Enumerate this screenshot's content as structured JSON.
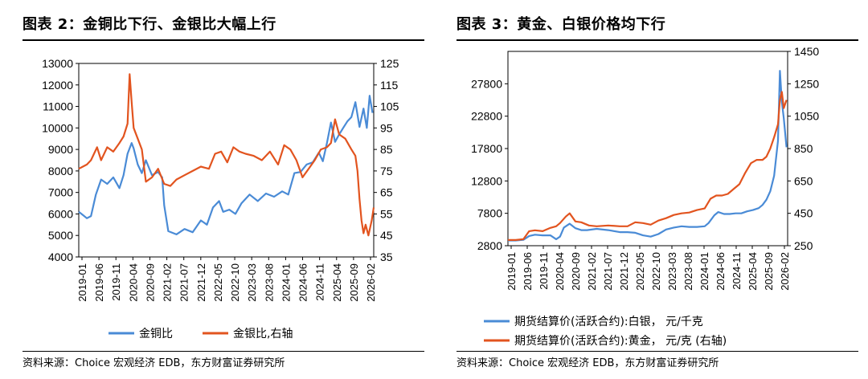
{
  "charts": [
    {
      "title": "图表 2：金铜比下行、金银比大幅上行",
      "source": "资料来源：Choice 宏观经济 EDB，东方财富证券研究所",
      "chart_data": {
        "type": "line",
        "title": "图表 2：金铜比下行、金银比大幅上行",
        "left_axis": {
          "min": 4000,
          "max": 13000,
          "ticks": [
            "4000",
            "5000",
            "6000",
            "7000",
            "8000",
            "9000",
            "10000",
            "11000",
            "12000",
            "13000"
          ]
        },
        "right_axis": {
          "min": 35,
          "max": 125,
          "ticks": [
            "35",
            "45",
            "55",
            "65",
            "75",
            "85",
            "95",
            "105",
            "115",
            "125"
          ]
        },
        "x_range": [
          2019.0,
          2026.25
        ],
        "x_ticks": [
          "2019-01",
          "2019-06",
          "2019-11",
          "2020-04",
          "2020-09",
          "2021-02",
          "2021-07",
          "2021-12",
          "2022-05",
          "2022-10",
          "2023-03",
          "2023-08",
          "2024-01",
          "2024-06",
          "2024-11",
          "2025-04",
          "2025-09",
          "2026-02"
        ],
        "series": [
          {
            "name": "金铜比",
            "axis": "left",
            "color": "#4A8BD6",
            "x": [
              2019.0,
              2019.1,
              2019.2,
              2019.3,
              2019.42,
              2019.55,
              2019.7,
              2019.85,
              2020.0,
              2020.1,
              2020.2,
              2020.3,
              2020.35,
              2020.45,
              2020.55,
              2020.65,
              2020.8,
              2020.95,
              2021.05,
              2021.1,
              2021.2,
              2021.4,
              2021.6,
              2021.8,
              2022.0,
              2022.15,
              2022.3,
              2022.45,
              2022.55,
              2022.7,
              2022.85,
              2023.0,
              2023.2,
              2023.4,
              2023.6,
              2023.8,
              2024.0,
              2024.15,
              2024.3,
              2024.45,
              2024.6,
              2024.75,
              2024.9,
              2025.0,
              2025.1,
              2025.2,
              2025.3,
              2025.4,
              2025.5,
              2025.6,
              2025.7,
              2025.8,
              2025.9,
              2026.0,
              2026.08,
              2026.15,
              2026.22
            ],
            "values": [
              6100,
              5950,
              5800,
              5900,
              6900,
              7600,
              7400,
              7700,
              7200,
              7800,
              8800,
              9300,
              9050,
              8300,
              7900,
              8500,
              7800,
              7950,
              7700,
              6400,
              5200,
              5050,
              5300,
              5150,
              5700,
              5500,
              6300,
              6600,
              6100,
              6200,
              6000,
              6500,
              6900,
              6600,
              6950,
              6800,
              7050,
              6900,
              7900,
              7950,
              8300,
              8400,
              8850,
              8450,
              9300,
              10250,
              9350,
              9700,
              10000,
              10300,
              10500,
              11200,
              10050,
              10900,
              10000,
              11500,
              10700
            ]
          },
          {
            "name": "金银比,右轴",
            "axis": "right",
            "color": "#E2541F",
            "x": [
              2019.0,
              2019.1,
              2019.2,
              2019.3,
              2019.45,
              2019.55,
              2019.7,
              2019.85,
              2020.0,
              2020.1,
              2020.2,
              2020.25,
              2020.3,
              2020.35,
              2020.45,
              2020.55,
              2020.65,
              2020.8,
              2020.95,
              2021.1,
              2021.25,
              2021.4,
              2021.6,
              2021.8,
              2022.0,
              2022.2,
              2022.35,
              2022.5,
              2022.65,
              2022.8,
              2022.95,
              2023.1,
              2023.3,
              2023.5,
              2023.7,
              2023.9,
              2024.05,
              2024.2,
              2024.35,
              2024.5,
              2024.65,
              2024.8,
              2024.95,
              2025.1,
              2025.2,
              2025.3,
              2025.4,
              2025.55,
              2025.7,
              2025.8,
              2025.85,
              2025.9,
              2025.95,
              2026.0,
              2026.05,
              2026.12,
              2026.2,
              2026.25
            ],
            "values": [
              76,
              77,
              78,
              80,
              86,
              80,
              86,
              84,
              88,
              91,
              97,
              120,
              107,
              95,
              90,
              85,
              70,
              72,
              76,
              69,
              68,
              71,
              73,
              75,
              77,
              76,
              83,
              84,
              79,
              86,
              84,
              83,
              82,
              80,
              84,
              78,
              87,
              85,
              80,
              72,
              76,
              80,
              85,
              86,
              88,
              99,
              92,
              90,
              85,
              82,
              75,
              62,
              52,
              46,
              50,
              45,
              52,
              58
            ]
          }
        ],
        "legend": [
          "金铜比",
          "金银比,右轴"
        ],
        "legend_position": "bottom"
      }
    },
    {
      "title": "图表 3：黄金、白银价格均下行",
      "source": "资料来源：Choice 宏观经济 EDB，东方财富证券研究所",
      "chart_data": {
        "type": "line",
        "title": "图表 3：黄金、白银价格均下行",
        "left_axis": {
          "min": 2800,
          "max": 32800,
          "ticks": [
            "2800",
            "7800",
            "12800",
            "17800",
            "22800",
            "27800"
          ]
        },
        "right_axis": {
          "min": 250,
          "max": 1450,
          "ticks": [
            "250",
            "450",
            "650",
            "850",
            "1050",
            "1250",
            "1450"
          ]
        },
        "x_range": [
          2019.0,
          2026.25
        ],
        "x_ticks": [
          "2019-01",
          "2019-06",
          "2019-11",
          "2020-04",
          "2020-09",
          "2021-02",
          "2021-07",
          "2021-12",
          "2022-05",
          "2022-10",
          "2023-03",
          "2023-08",
          "2024-01",
          "2024-06",
          "2024-11",
          "2025-04",
          "2025-09",
          "2026-02"
        ],
        "series": [
          {
            "name": "期货结算价(活跃合约):白银，元/千克",
            "axis": "left",
            "color": "#4A8BD6",
            "x": [
              2019.0,
              2019.2,
              2019.4,
              2019.55,
              2019.7,
              2019.9,
              2020.1,
              2020.25,
              2020.35,
              2020.45,
              2020.6,
              2020.75,
              2020.9,
              2021.05,
              2021.3,
              2021.6,
              2021.9,
              2022.1,
              2022.3,
              2022.5,
              2022.7,
              2022.9,
              2023.1,
              2023.3,
              2023.5,
              2023.7,
              2023.9,
              2024.1,
              2024.2,
              2024.35,
              2024.45,
              2024.6,
              2024.75,
              2024.9,
              2025.05,
              2025.2,
              2025.35,
              2025.5,
              2025.6,
              2025.7,
              2025.8,
              2025.9,
              2026.0,
              2026.05,
              2026.1,
              2026.15,
              2026.22
            ],
            "values": [
              3600,
              3600,
              3700,
              4300,
              4500,
              4400,
              4400,
              3800,
              4200,
              5600,
              6200,
              5500,
              5200,
              5200,
              5400,
              5200,
              4900,
              4900,
              4800,
              4400,
              4200,
              4600,
              5300,
              5600,
              5800,
              5700,
              5700,
              5800,
              6300,
              7500,
              8000,
              7700,
              7700,
              7800,
              7800,
              8100,
              8300,
              8600,
              9100,
              9900,
              11200,
              13600,
              19000,
              29800,
              25000,
              22500,
              18000
            ]
          },
          {
            "name": "期货结算价(活跃合约):黄金，元/克(右轴)",
            "axis": "right",
            "color": "#E2541F",
            "x": [
              2019.0,
              2019.2,
              2019.4,
              2019.55,
              2019.7,
              2019.9,
              2020.1,
              2020.25,
              2020.35,
              2020.5,
              2020.6,
              2020.75,
              2020.9,
              2021.1,
              2021.3,
              2021.6,
              2021.9,
              2022.1,
              2022.3,
              2022.5,
              2022.7,
              2022.9,
              2023.1,
              2023.3,
              2023.5,
              2023.7,
              2023.9,
              2024.1,
              2024.25,
              2024.4,
              2024.55,
              2024.7,
              2024.85,
              2025.0,
              2025.15,
              2025.3,
              2025.45,
              2025.6,
              2025.7,
              2025.8,
              2025.9,
              2026.0,
              2026.05,
              2026.1,
              2026.15,
              2026.22
            ],
            "values": [
              285,
              285,
              290,
              340,
              345,
              340,
              360,
              370,
              390,
              430,
              450,
              400,
              395,
              375,
              370,
              375,
              370,
              370,
              395,
              390,
              380,
              405,
              420,
              440,
              450,
              455,
              470,
              480,
              540,
              560,
              560,
              570,
              600,
              630,
              700,
              760,
              780,
              780,
              800,
              850,
              920,
              1000,
              1150,
              1200,
              1100,
              1150
            ]
          }
        ],
        "legend": [
          "期货结算价(活跃合约):白银，  元/千克",
          "期货结算价(活跃合约):黄金，  元/克  (右轴)"
        ],
        "legend_position": "bottom"
      }
    }
  ]
}
